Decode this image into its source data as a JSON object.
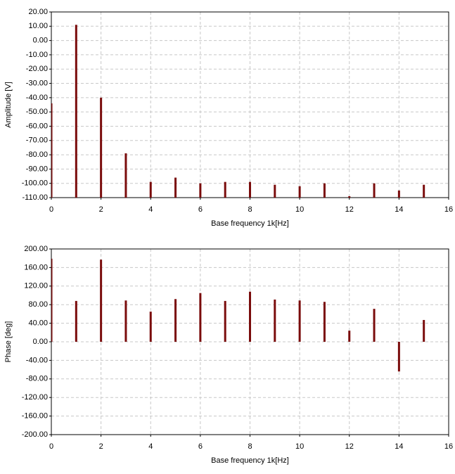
{
  "chart_data": [
    {
      "type": "bar",
      "color": "#7a0c0c",
      "grid": true,
      "x": [
        0,
        1,
        2,
        3,
        4,
        5,
        6,
        7,
        8,
        9,
        10,
        11,
        12,
        13,
        14,
        15
      ],
      "values": [
        -44,
        11,
        -40,
        -79,
        -99,
        -96,
        -100,
        -99,
        -99,
        -101,
        -102,
        -100,
        -109,
        -100,
        -105,
        -101
      ],
      "xlim": [
        0,
        16
      ],
      "xticks": [
        0,
        2,
        4,
        6,
        8,
        10,
        12,
        14,
        16
      ],
      "ylim": [
        -110,
        20
      ],
      "yticks": [
        {
          "value": 20,
          "label": "20.00"
        },
        {
          "value": 10,
          "label": "10.00"
        },
        {
          "value": 0,
          "label": "0.00"
        },
        {
          "value": -10,
          "label": "-10.00"
        },
        {
          "value": -20,
          "label": "-20.00"
        },
        {
          "value": -30,
          "label": "-30.00"
        },
        {
          "value": -40,
          "label": "-40.00"
        },
        {
          "value": -50,
          "label": "-50.00"
        },
        {
          "value": -60,
          "label": "-60.00"
        },
        {
          "value": -70,
          "label": "-70.00"
        },
        {
          "value": -80,
          "label": "-80.00"
        },
        {
          "value": -90,
          "label": "-90.00"
        },
        {
          "value": -100,
          "label": "-100.00"
        },
        {
          "value": -110,
          "label": "-110.00"
        }
      ],
      "x_label": "Base frequency 1k[Hz]",
      "y_label": "Amplitude [V]"
    },
    {
      "type": "stem",
      "color": "#7a0c0c",
      "grid": true,
      "x": [
        0,
        1,
        2,
        3,
        4,
        5,
        6,
        7,
        8,
        9,
        10,
        11,
        12,
        13,
        14,
        15
      ],
      "values": [
        179,
        88,
        177,
        89,
        65,
        92,
        105,
        88,
        108,
        91,
        89,
        86,
        24,
        71,
        -64,
        47
      ],
      "xlim": [
        0,
        16
      ],
      "xticks": [
        0,
        2,
        4,
        6,
        8,
        10,
        12,
        14,
        16
      ],
      "ylim": [
        -200,
        200
      ],
      "yticks": [
        {
          "value": 200,
          "label": "200.00"
        },
        {
          "value": 160,
          "label": "160.00"
        },
        {
          "value": 120,
          "label": "120.00"
        },
        {
          "value": 80,
          "label": "80.00"
        },
        {
          "value": 40,
          "label": "40.00"
        },
        {
          "value": 0,
          "label": "0.00"
        },
        {
          "value": -40,
          "label": "-40.00"
        },
        {
          "value": -80,
          "label": "-80.00"
        },
        {
          "value": -120,
          "label": "-120.00"
        },
        {
          "value": -160,
          "label": "-160.00"
        },
        {
          "value": -200,
          "label": "-200.00"
        }
      ],
      "x_label": "Base frequency 1k[Hz]",
      "y_label": "Phase [deg]"
    }
  ]
}
